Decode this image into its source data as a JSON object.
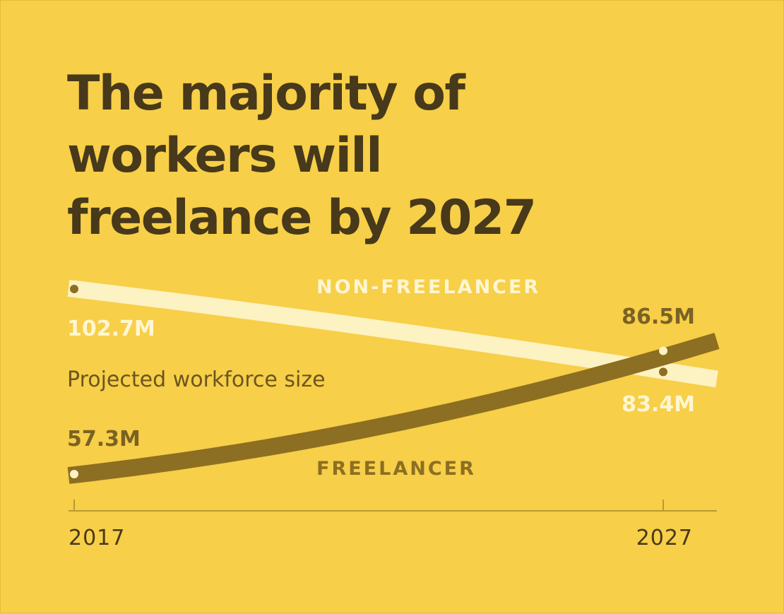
{
  "title_lines": [
    "The majority of",
    "workers will",
    "freelance by 2027"
  ],
  "colors": {
    "background": "#f7cf48",
    "title": "#47391a",
    "non_freelancer_line": "#fdf2c2",
    "freelancer_line": "#8c6f22",
    "axis": "#b99a30",
    "tick_text": "#47391a",
    "annotation_text": "#6b5520",
    "non_freelancer_label": "#fff6d2",
    "freelancer_label": "#8c6f22",
    "value_dark": "#7a6224",
    "value_light": "#fff6d2"
  },
  "chart_data": {
    "type": "line",
    "title": "The majority of workers will freelance by 2027",
    "annotation": "Projected workforce size",
    "x": [
      2017,
      2027
    ],
    "x_tick_labels": [
      "2017",
      "2027"
    ],
    "ylim": [
      40,
      110
    ],
    "grid": false,
    "series": [
      {
        "name": "NON-FREELANCER",
        "values": [
          102.7,
          83.4
        ],
        "value_labels": [
          "102.7M",
          "83.4M"
        ],
        "color": "#fdf2c2"
      },
      {
        "name": "FREELANCER",
        "values": [
          57.3,
          86.5
        ],
        "value_labels": [
          "57.3M",
          "86.5M"
        ],
        "color": "#8c6f22"
      }
    ]
  }
}
